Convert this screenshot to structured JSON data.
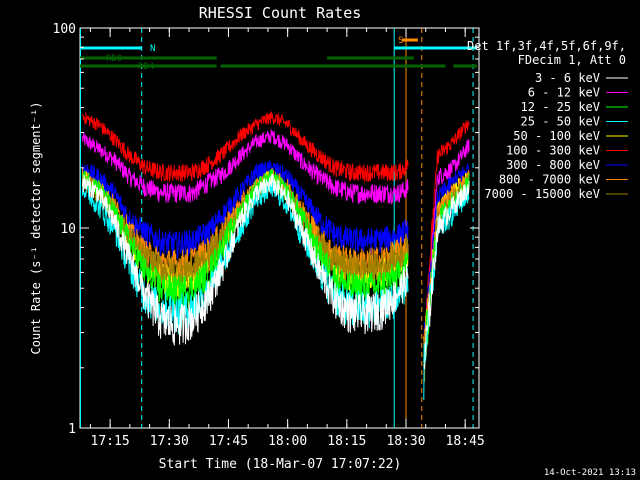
{
  "chart_data": {
    "type": "line",
    "title": "RHESSI Count Rates",
    "xlabel": "Start Time (18-Mar-07 17:07:22)",
    "ylabel": "Count Rate (s⁻¹ detector segment⁻¹)",
    "y_scale": "log",
    "ylim": [
      1,
      100
    ],
    "y_ticks": [
      {
        "value": 1,
        "label": "1"
      },
      {
        "value": 10,
        "label": "10"
      },
      {
        "value": 100,
        "label": "100"
      }
    ],
    "xlim": [
      "17:07:22",
      "18:48:30"
    ],
    "x_ticks": [
      "17:15",
      "17:30",
      "17:45",
      "18:00",
      "18:15",
      "18:30",
      "18:45"
    ],
    "grid": false,
    "legend_header": [
      "Det 1f,3f,4f,5f,6f,9f,",
      "FDecim 1, Att 0"
    ],
    "legend_placement": "right",
    "x": [
      "17:08",
      "17:12",
      "17:16",
      "17:20",
      "17:24",
      "17:28",
      "17:32",
      "17:36",
      "17:40",
      "17:44",
      "17:48",
      "17:52",
      "17:56",
      "18:00",
      "18:04",
      "18:08",
      "18:12",
      "18:16",
      "18:20",
      "18:24",
      "18:28",
      "18:31",
      "18:34",
      "18:38",
      "18:42",
      "18:46"
    ],
    "gap": [
      "18:31",
      "18:34"
    ],
    "series": [
      {
        "name": "3 - 6 keV",
        "color": "#ffffff",
        "values": [
          17,
          15,
          11,
          7.0,
          4.6,
          3.5,
          3.3,
          3.6,
          4.6,
          6.8,
          11,
          15,
          17,
          14,
          9.5,
          6.2,
          4.4,
          3.8,
          3.8,
          4.0,
          4.8,
          6.0,
          1.6,
          10,
          13,
          16
        ]
      },
      {
        "name": "6 - 12 keV",
        "color": "#ff00ff",
        "values": [
          28,
          25,
          22,
          18,
          16,
          15,
          15,
          15,
          17,
          19,
          23,
          27,
          29,
          26,
          21,
          18,
          16,
          15,
          15,
          15,
          15,
          16,
          1.8,
          18,
          20,
          26
        ]
      },
      {
        "name": "12 - 25 keV",
        "color": "#00ff00",
        "values": [
          18,
          16,
          12,
          8.5,
          6.0,
          5.0,
          4.8,
          5.0,
          6.0,
          8.5,
          12,
          16,
          18,
          15,
          11,
          7.5,
          5.7,
          5.0,
          5.0,
          5.2,
          5.8,
          7.0,
          1.7,
          11,
          14,
          17
        ]
      },
      {
        "name": "25 - 50 keV",
        "color": "#00ffff",
        "values": [
          16,
          13,
          10,
          6.5,
          4.6,
          4.0,
          3.8,
          4.0,
          4.8,
          7.0,
          10,
          14,
          16,
          13,
          9.0,
          6.2,
          4.6,
          4.0,
          4.0,
          4.1,
          4.6,
          5.6,
          1.6,
          9.5,
          12,
          15
        ]
      },
      {
        "name": "50 - 100 keV",
        "color": "#ffff00",
        "values": [
          18,
          16,
          12,
          8.8,
          6.5,
          5.7,
          5.5,
          5.8,
          6.8,
          9.0,
          12,
          16,
          18,
          15,
          11,
          8.0,
          6.3,
          5.8,
          5.8,
          6.0,
          6.6,
          7.8,
          1.8,
          12,
          15,
          18
        ]
      },
      {
        "name": "100 - 300 keV",
        "color": "#ff0000",
        "values": [
          36,
          33,
          28,
          23,
          20,
          19,
          19,
          19,
          21,
          24,
          29,
          33,
          36,
          33,
          27,
          23,
          20,
          19,
          19,
          19,
          19,
          21,
          2.0,
          23,
          27,
          34
        ]
      },
      {
        "name": "300 - 800 keV",
        "color": "#0000ff",
        "values": [
          20,
          18,
          15,
          11,
          9.5,
          8.5,
          8.3,
          8.6,
          9.6,
          12,
          15,
          19,
          20,
          18,
          14,
          11,
          9.3,
          8.7,
          8.7,
          8.8,
          9.2,
          10,
          1.9,
          14,
          17,
          20
        ]
      },
      {
        "name": "800 - 7000 keV",
        "color": "#ff8c00",
        "values": [
          18,
          16,
          13,
          9.6,
          7.5,
          6.8,
          6.6,
          6.9,
          7.8,
          10,
          13,
          16,
          18,
          16,
          12,
          9.0,
          7.3,
          6.8,
          6.8,
          7.0,
          7.6,
          8.6,
          1.8,
          12,
          15,
          18
        ]
      },
      {
        "name": "7000 - 15000 keV",
        "color": "#a08000",
        "values": [
          17,
          15,
          12,
          9.0,
          7.0,
          6.3,
          6.1,
          6.4,
          7.3,
          9.5,
          12,
          15,
          17,
          15,
          11,
          8.5,
          6.8,
          6.3,
          6.3,
          6.5,
          7.1,
          8.0,
          1.7,
          11,
          14,
          17
        ]
      }
    ],
    "flag_bars": [
      {
        "label": "RD0",
        "color": "#006400",
        "segments": [
          [
            "17:07:22",
            "17:42"
          ],
          [
            "18:10",
            "18:32"
          ]
        ]
      },
      {
        "label": "RD4",
        "color": "#006400",
        "segments": [
          [
            "17:07:22",
            "17:42"
          ],
          [
            "17:43",
            "18:27"
          ],
          [
            "18:27",
            "18:40"
          ],
          [
            "18:42",
            "18:48"
          ]
        ]
      },
      {
        "label": "N",
        "color": "#00ffff",
        "segments": [
          [
            "17:07:22",
            "17:23"
          ],
          [
            "18:27",
            "18:48"
          ]
        ]
      },
      {
        "label": "S",
        "color": "#ff8c00",
        "segments": [
          [
            "18:29",
            "18:33"
          ]
        ]
      }
    ],
    "vlines": [
      {
        "time": "17:07:30",
        "color": "#00ffff",
        "style": "solid"
      },
      {
        "time": "17:23",
        "color": "#00ffff",
        "style": "dashed"
      },
      {
        "time": "18:27",
        "color": "#00ffff",
        "style": "solid"
      },
      {
        "time": "18:30",
        "color": "#ff8c00",
        "style": "solid"
      },
      {
        "time": "18:34",
        "color": "#ff8c00",
        "style": "dashed"
      },
      {
        "time": "18:47",
        "color": "#00ffff",
        "style": "dashed"
      }
    ]
  },
  "timestamp": "14-Oct-2021 13:13"
}
